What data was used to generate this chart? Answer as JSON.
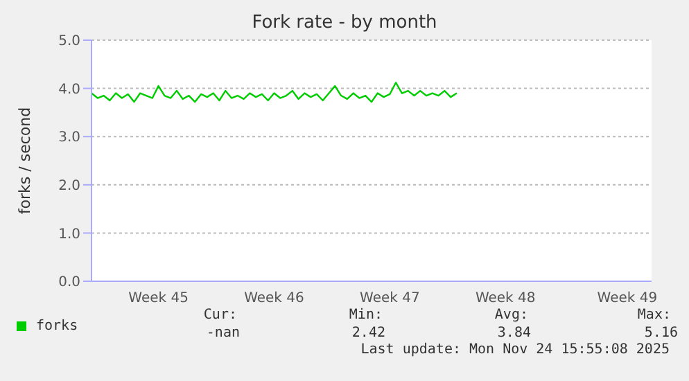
{
  "chart_data": {
    "type": "line",
    "title": "Fork rate - by month",
    "ylabel": "forks / second",
    "categories": [
      null,
      null,
      null,
      null,
      null,
      null,
      null,
      null,
      null,
      null,
      null,
      "Week 45",
      null,
      null,
      null,
      null,
      null,
      null,
      null,
      null,
      null,
      null,
      null,
      null,
      null,
      null,
      null,
      null,
      null,
      null,
      "Week 46",
      null,
      null,
      null,
      null,
      null,
      null,
      null,
      null,
      null,
      null,
      null,
      null,
      null,
      null,
      null,
      null,
      null,
      null,
      "Week 47",
      null,
      null,
      null,
      null,
      null,
      null,
      null,
      null,
      null,
      null,
      null,
      null,
      null,
      null,
      null,
      null,
      null,
      null,
      "Week 48",
      null,
      null,
      null,
      null,
      null,
      null,
      null,
      null,
      null,
      null,
      null,
      null,
      null,
      null,
      null,
      null,
      null,
      null,
      null,
      "Week 49",
      null,
      null,
      null,
      null
    ],
    "series": [
      {
        "name": "forks",
        "color": "#00cc00",
        "values": [
          3.9,
          3.8,
          3.85,
          3.75,
          3.9,
          3.8,
          3.88,
          3.72,
          3.9,
          3.85,
          3.8,
          4.05,
          3.85,
          3.8,
          3.95,
          3.78,
          3.85,
          3.72,
          3.88,
          3.82,
          3.9,
          3.75,
          3.95,
          3.8,
          3.85,
          3.78,
          3.9,
          3.82,
          3.88,
          3.75,
          3.9,
          3.8,
          3.85,
          3.95,
          3.78,
          3.9,
          3.82,
          3.88,
          3.75,
          3.9,
          4.05,
          3.85,
          3.78,
          3.9,
          3.8,
          3.85,
          3.72,
          3.9,
          3.82,
          3.88,
          4.12,
          3.9,
          3.95,
          3.85,
          3.95,
          3.85,
          3.9,
          3.85,
          3.95,
          3.82,
          3.9,
          null,
          null,
          null,
          null,
          null,
          null,
          null,
          null,
          null,
          null,
          null,
          null,
          null,
          null,
          null,
          null,
          null,
          null,
          null,
          null,
          null,
          null,
          null,
          null,
          null,
          null,
          null,
          null,
          null,
          null,
          null,
          null
        ]
      }
    ],
    "ylim": [
      0,
      5
    ],
    "yticks": [
      {
        "value": 0,
        "label": "0.0"
      },
      {
        "value": 1,
        "label": "1.0"
      },
      {
        "value": 2,
        "label": "2.0"
      },
      {
        "value": 3,
        "label": "3.0"
      },
      {
        "value": 4,
        "label": "4.0"
      },
      {
        "value": 5,
        "label": "5.0"
      }
    ],
    "grid": "y",
    "legend": "bottom left",
    "marker": "none",
    "line_style": "solid",
    "annotations": [
      "Cur:",
      "Min:",
      "Avg:",
      "Max:",
      "-nan",
      "2.42",
      "3.84",
      "5.16",
      "Last update: Mon Nov 24 15:55:08 2025"
    ]
  }
}
